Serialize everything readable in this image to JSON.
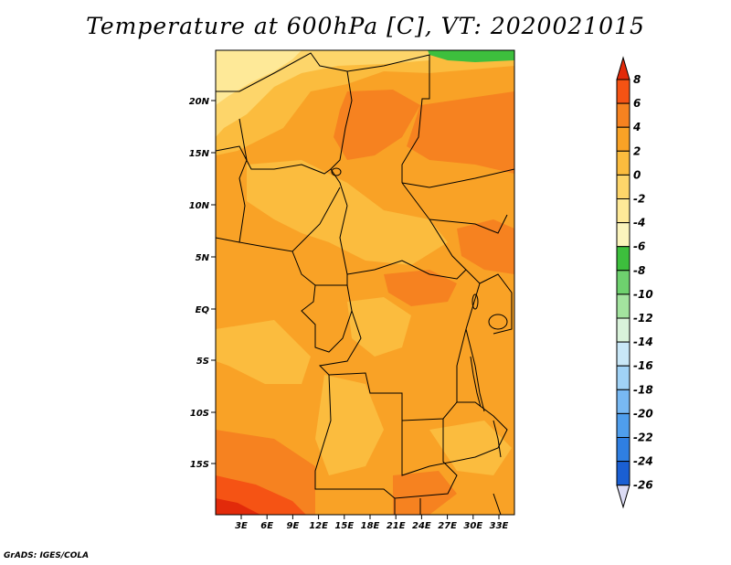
{
  "title": "Temperature at 600hPa [C], VT: 2020021015",
  "credit": "GrADS: IGES/COLA",
  "lat_labels": [
    "20N",
    "15N",
    "10N",
    "5N",
    "EQ",
    "5S",
    "10S",
    "15S"
  ],
  "lon_labels": [
    "3E",
    "6E",
    "9E",
    "12E",
    "15E",
    "18E",
    "21E",
    "24E",
    "27E",
    "30E",
    "33E"
  ],
  "colorbar": {
    "labels": [
      "8",
      "6",
      "4",
      "2",
      "0",
      "-2",
      "-4",
      "-6",
      "-8",
      "-10",
      "-12",
      "-14",
      "-16",
      "-18",
      "-20",
      "-22",
      "-24",
      "-26"
    ],
    "colors": [
      "#e22a0a",
      "#f55314",
      "#f68220",
      "#f9a226",
      "#fbbc3e",
      "#fdd56a",
      "#fee998",
      "#fbf4bd",
      "#3dbf3d",
      "#6ed16e",
      "#a3e39f",
      "#d9f2da",
      "#c9e7f7",
      "#a0d2f6",
      "#78b9f3",
      "#4f9eec",
      "#2f7fe2",
      "#1a5fd3",
      "#0c40b0",
      "#041c86"
    ],
    "top_arrow_color": "#e22a0a",
    "bottom_arrow_color": "#dcdcf5"
  },
  "field_colors": {
    "main": "#f9a226",
    "warm": "#f68220",
    "hot": "#f55314",
    "mild": "#fbbc3e",
    "cool": "#fdd56a",
    "cooler": "#fee998",
    "green": "#3dbf3d"
  }
}
